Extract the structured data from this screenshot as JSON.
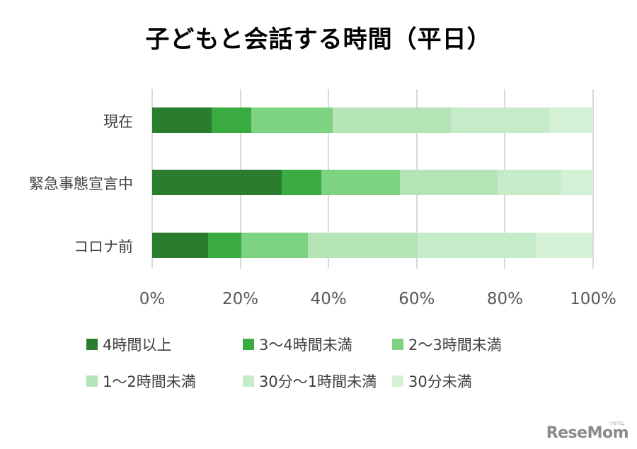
{
  "title": "子どもと会話する時間（平日）",
  "chart_data": {
    "type": "bar",
    "orientation": "horizontal",
    "stacked": "percent",
    "title": "子どもと会話する時間（平日）",
    "categories": [
      "現在",
      "緊急事態宣言中",
      "コロナ前"
    ],
    "series": [
      {
        "name": "4時間以上",
        "color": "#2a7d2e",
        "values": [
          13.5,
          29.4,
          12.7
        ]
      },
      {
        "name": "3〜4時間未満",
        "color": "#3aab40",
        "values": [
          9.0,
          9.0,
          7.5
        ]
      },
      {
        "name": "2〜3時間未満",
        "color": "#7dd381",
        "values": [
          18.4,
          17.8,
          15.1
        ]
      },
      {
        "name": "1〜2時間未満",
        "color": "#b5e4b7",
        "values": [
          26.9,
          22.2,
          24.9
        ]
      },
      {
        "name": "30分〜1時間未満",
        "color": "#c6ebc8",
        "values": [
          22.3,
          14.2,
          26.8
        ]
      },
      {
        "name": "30分未満",
        "color": "#d4f0d5",
        "values": [
          9.9,
          7.4,
          12.9
        ]
      }
    ],
    "xlabel": "",
    "ylabel": "",
    "xlim": [
      0,
      100
    ],
    "xticks": [
      "0%",
      "20%",
      "40%",
      "60%",
      "80%",
      "100%"
    ],
    "grid": "vertical",
    "legend_position": "bottom"
  },
  "legend": [
    {
      "label": "4時間以上",
      "color": "#2a7d2e"
    },
    {
      "label": "3〜4時間未満",
      "color": "#3aab40"
    },
    {
      "label": "2〜3時間未満",
      "color": "#7dd381"
    },
    {
      "label": "1〜2時間未満",
      "color": "#b5e4b7"
    },
    {
      "label": "30分〜1時間未満",
      "color": "#c6ebc8"
    },
    {
      "label": "30分未満",
      "color": "#d4f0d5"
    }
  ],
  "logo": {
    "text": "ReseMom",
    "sub": "リセマム"
  }
}
